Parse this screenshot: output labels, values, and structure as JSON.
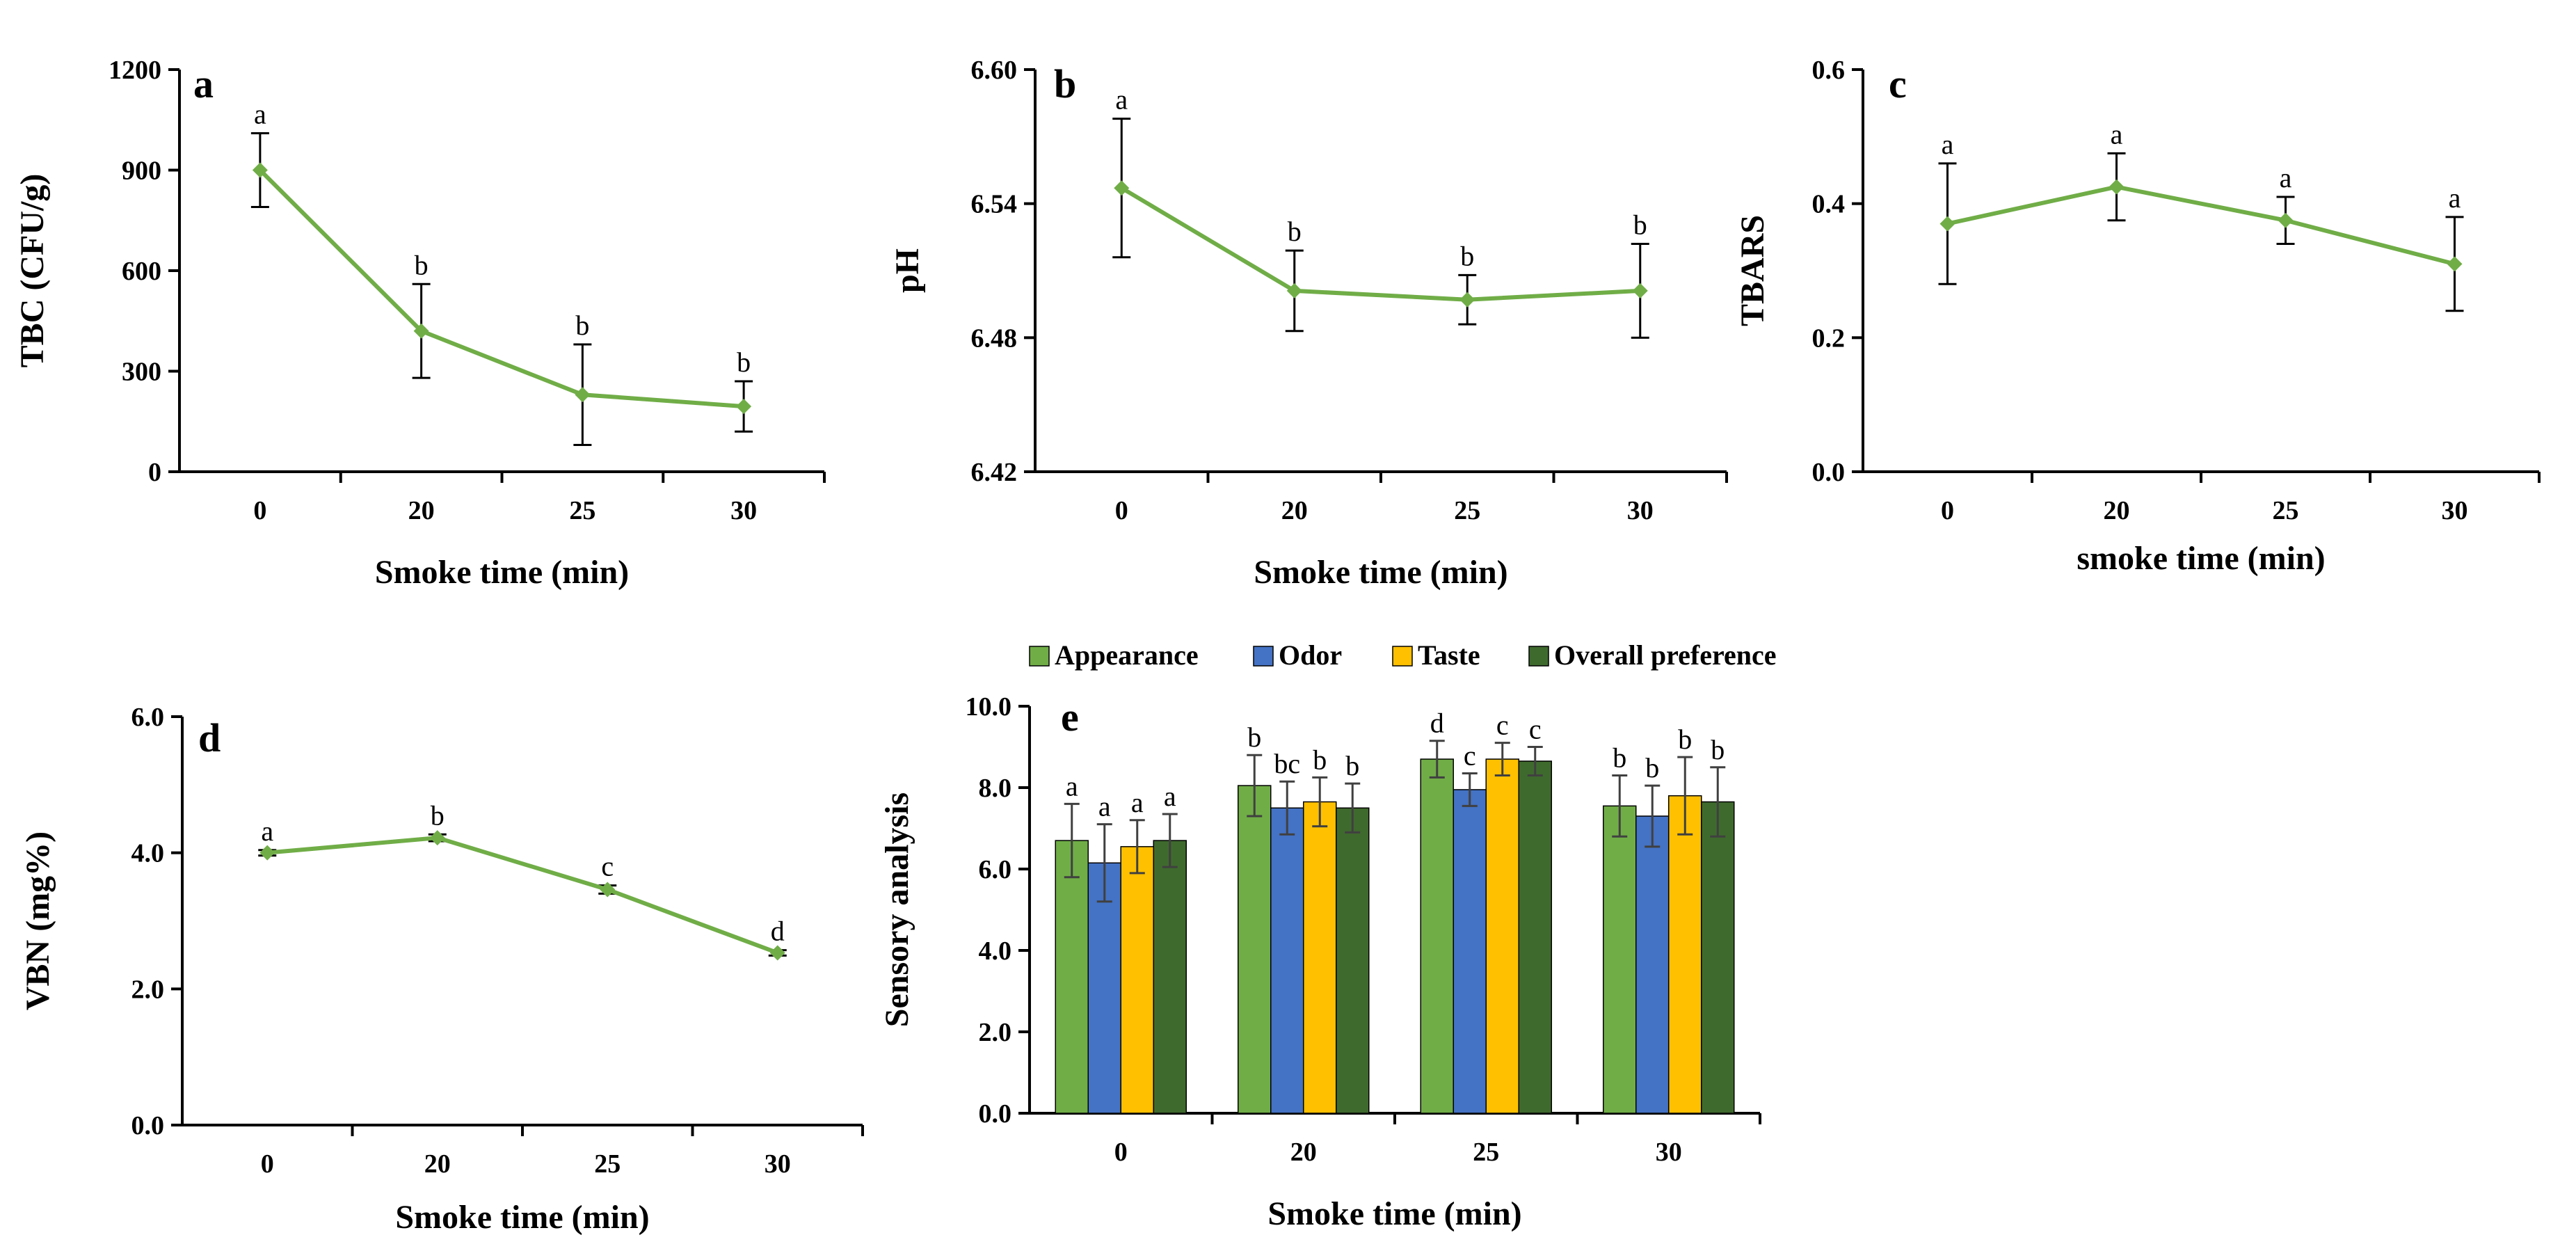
{
  "colors": {
    "line": "#70AD47",
    "appearance": "#70AD47",
    "odor": "#4472C4",
    "taste": "#FFC000",
    "overall": "#3F6A2E",
    "axis": "#000000",
    "error": "#404040"
  },
  "chart_data": [
    {
      "id": "a",
      "type": "line",
      "panel_label": "a",
      "categories": [
        "0",
        "20",
        "25",
        "30"
      ],
      "values": [
        900,
        420,
        230,
        195
      ],
      "errors": [
        110,
        140,
        150,
        75
      ],
      "significance": [
        "a",
        "b",
        "b",
        "b"
      ],
      "xlabel": "Smoke time (min)",
      "ylabel": "TBC (CFU/g)",
      "ylim": [
        0,
        1200
      ],
      "yticks": [
        "0",
        "300",
        "600",
        "900",
        "1200"
      ],
      "grid": false
    },
    {
      "id": "b",
      "type": "line",
      "panel_label": "b",
      "categories": [
        "0",
        "20",
        "25",
        "30"
      ],
      "values": [
        6.547,
        6.501,
        6.497,
        6.501
      ],
      "errors": [
        0.031,
        0.018,
        0.011,
        0.021
      ],
      "significance": [
        "a",
        "b",
        "b",
        "b"
      ],
      "xlabel": "Smoke time (min)",
      "ylabel": "pH",
      "ylim": [
        6.42,
        6.6
      ],
      "yticks": [
        "6.42",
        "6.48",
        "6.54",
        "6.60"
      ],
      "grid": false
    },
    {
      "id": "c",
      "type": "line",
      "panel_label": "c",
      "categories": [
        "0",
        "20",
        "25",
        "30"
      ],
      "values": [
        0.37,
        0.425,
        0.375,
        0.31
      ],
      "errors": [
        0.09,
        0.05,
        0.035,
        0.07
      ],
      "significance": [
        "a",
        "a",
        "a",
        "a"
      ],
      "xlabel": "smoke time (min)",
      "ylabel": "TBARS",
      "ylim": [
        0,
        0.6
      ],
      "yticks": [
        "0.0",
        "0.2",
        "0.4",
        "0.6"
      ],
      "grid": false
    },
    {
      "id": "d",
      "type": "line",
      "panel_label": "d",
      "categories": [
        "0",
        "20",
        "25",
        "30"
      ],
      "values": [
        4.0,
        4.22,
        3.46,
        2.53
      ],
      "errors": [
        0.04,
        0.05,
        0.06,
        0.04
      ],
      "significance": [
        "a",
        "b",
        "c",
        "d"
      ],
      "xlabel": "Smoke time (min)",
      "ylabel": "VBN (mg%)",
      "ylim": [
        0,
        6
      ],
      "yticks": [
        "0.0",
        "2.0",
        "4.0",
        "6.0"
      ],
      "grid": false
    },
    {
      "id": "e",
      "type": "bar",
      "panel_label": "e",
      "categories": [
        "0",
        "20",
        "25",
        "30"
      ],
      "series": [
        {
          "name": "Appearance",
          "color_key": "appearance",
          "values": [
            6.7,
            8.05,
            8.7,
            7.55
          ],
          "errors": [
            0.9,
            0.75,
            0.45,
            0.75
          ],
          "significance": [
            "a",
            "b",
            "d",
            "b"
          ]
        },
        {
          "name": "Odor",
          "color_key": "odor",
          "values": [
            6.15,
            7.5,
            7.95,
            7.3
          ],
          "errors": [
            0.95,
            0.65,
            0.4,
            0.75
          ],
          "significance": [
            "a",
            "bc",
            "c",
            "b"
          ]
        },
        {
          "name": "Taste",
          "color_key": "taste",
          "values": [
            6.55,
            7.65,
            8.7,
            7.8
          ],
          "errors": [
            0.65,
            0.6,
            0.4,
            0.95
          ],
          "significance": [
            "a",
            "b",
            "c",
            "b"
          ]
        },
        {
          "name": "Overall preference",
          "color_key": "overall",
          "values": [
            6.7,
            7.5,
            8.65,
            7.65
          ],
          "errors": [
            0.65,
            0.6,
            0.35,
            0.85
          ],
          "significance": [
            "a",
            "b",
            "c",
            "b"
          ]
        }
      ],
      "xlabel": "Smoke time (min)",
      "ylabel": "Sensory analysis",
      "ylim": [
        0,
        10
      ],
      "yticks": [
        "0.0",
        "2.0",
        "4.0",
        "6.0",
        "8.0",
        "10.0"
      ],
      "legend_position": "top",
      "grid": false
    }
  ]
}
